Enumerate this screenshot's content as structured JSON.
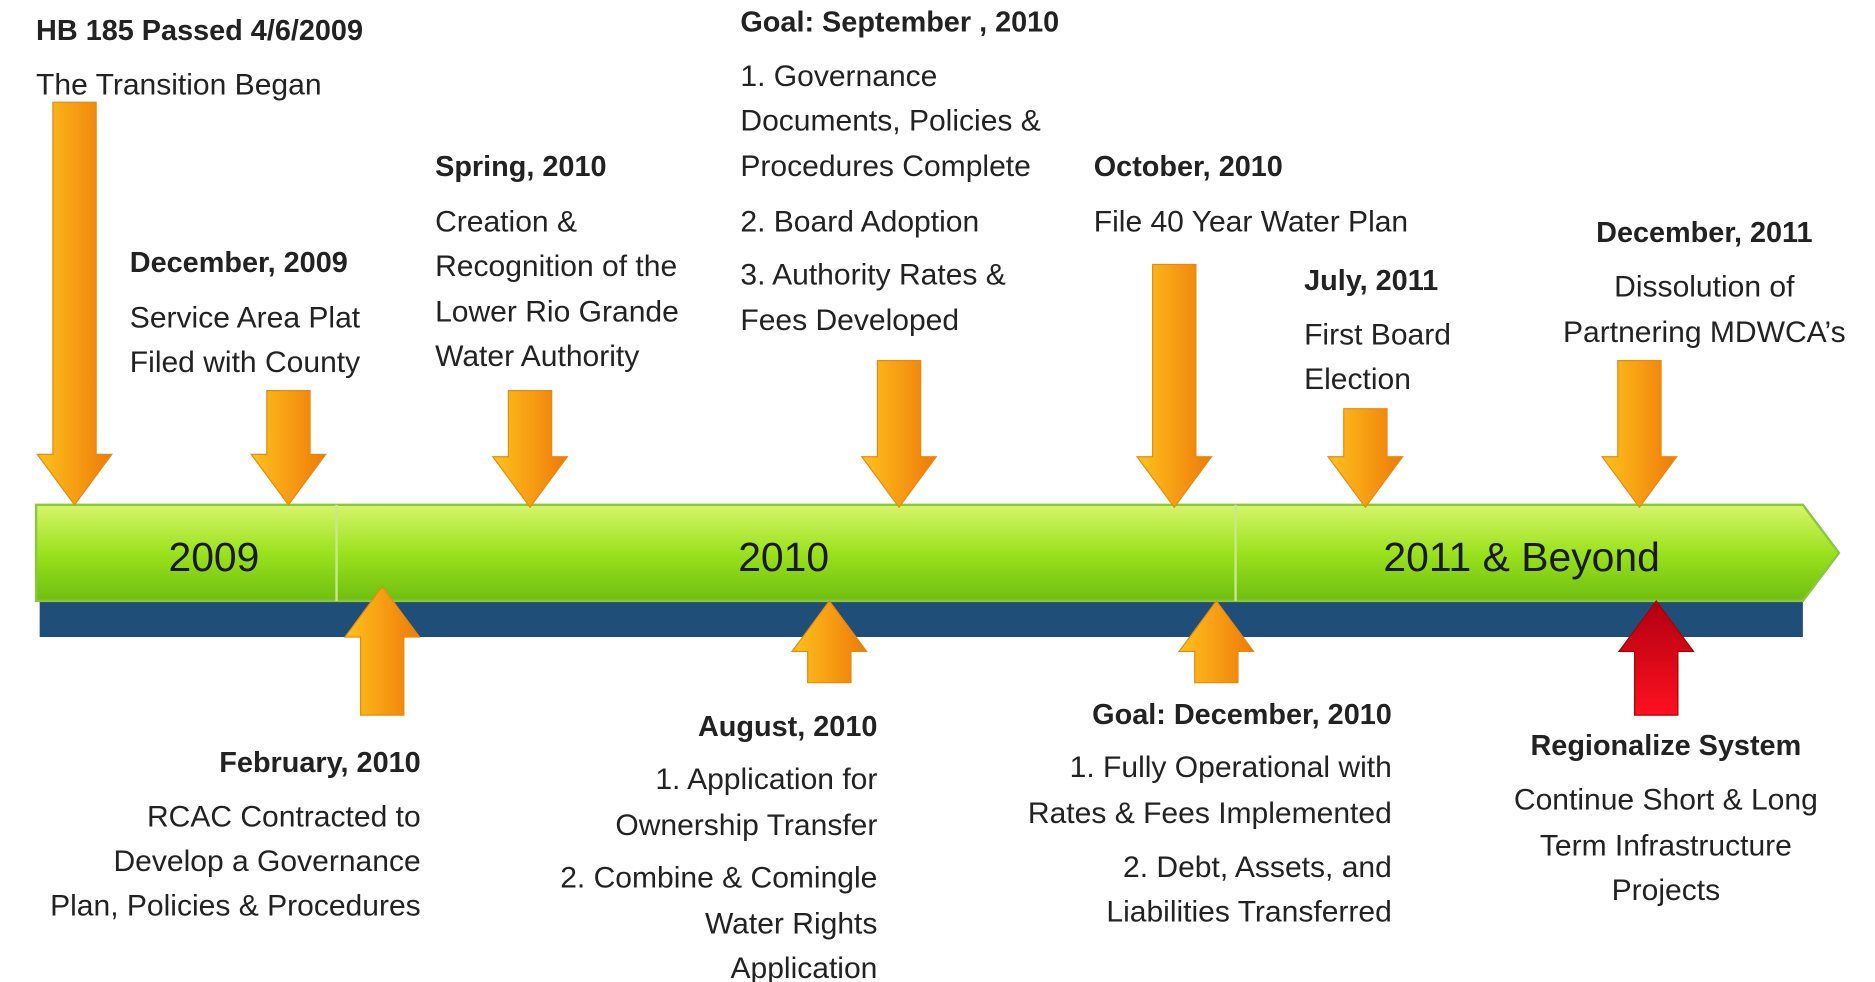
{
  "segments": [
    "2009",
    "2010",
    "2011 & Beyond"
  ],
  "events": [
    {
      "title": "HB 185 Passed 4/6/2009",
      "lines": [
        "The Transition Began"
      ]
    },
    {
      "title": "December, 2009",
      "lines": [
        "Service Area Plat",
        "Filed with County"
      ]
    },
    {
      "title": "Spring, 2010",
      "lines": [
        "Creation &",
        "Recognition of the",
        "Lower Rio Grande",
        "Water Authority"
      ]
    },
    {
      "title": "Goal: September , 2010",
      "lines": [
        "1. Governance",
        "Documents, Policies &",
        "Procedures Complete",
        "2. Board Adoption",
        "3. Authority Rates &",
        "Fees Developed"
      ]
    },
    {
      "title": "October, 2010",
      "lines": [
        "File 40 Year Water Plan"
      ]
    },
    {
      "title": "July, 2011",
      "lines": [
        "First  Board",
        "Election"
      ]
    },
    {
      "title": "December, 2011",
      "lines": [
        "Dissolution of",
        "Partnering MDWCA’s"
      ]
    },
    {
      "title": "February, 2010",
      "lines": [
        "RCAC Contracted to",
        "Develop a Governance",
        "Plan, Policies & Procedures"
      ]
    },
    {
      "title": "August, 2010",
      "lines": [
        "1.     Application for",
        "Ownership Transfer",
        "2. Combine & Comingle",
        "Water Rights",
        "Application"
      ]
    },
    {
      "title": "Goal: December, 2010",
      "lines": [
        "1. Fully Operational with",
        "Rates & Fees Implemented",
        "2. Debt, Assets, and",
        "Liabilities Transferred"
      ]
    },
    {
      "title": "Regionalize System",
      "lines": [
        "Continue Short & Long",
        "Term Infrastructure",
        "Projects"
      ]
    }
  ]
}
